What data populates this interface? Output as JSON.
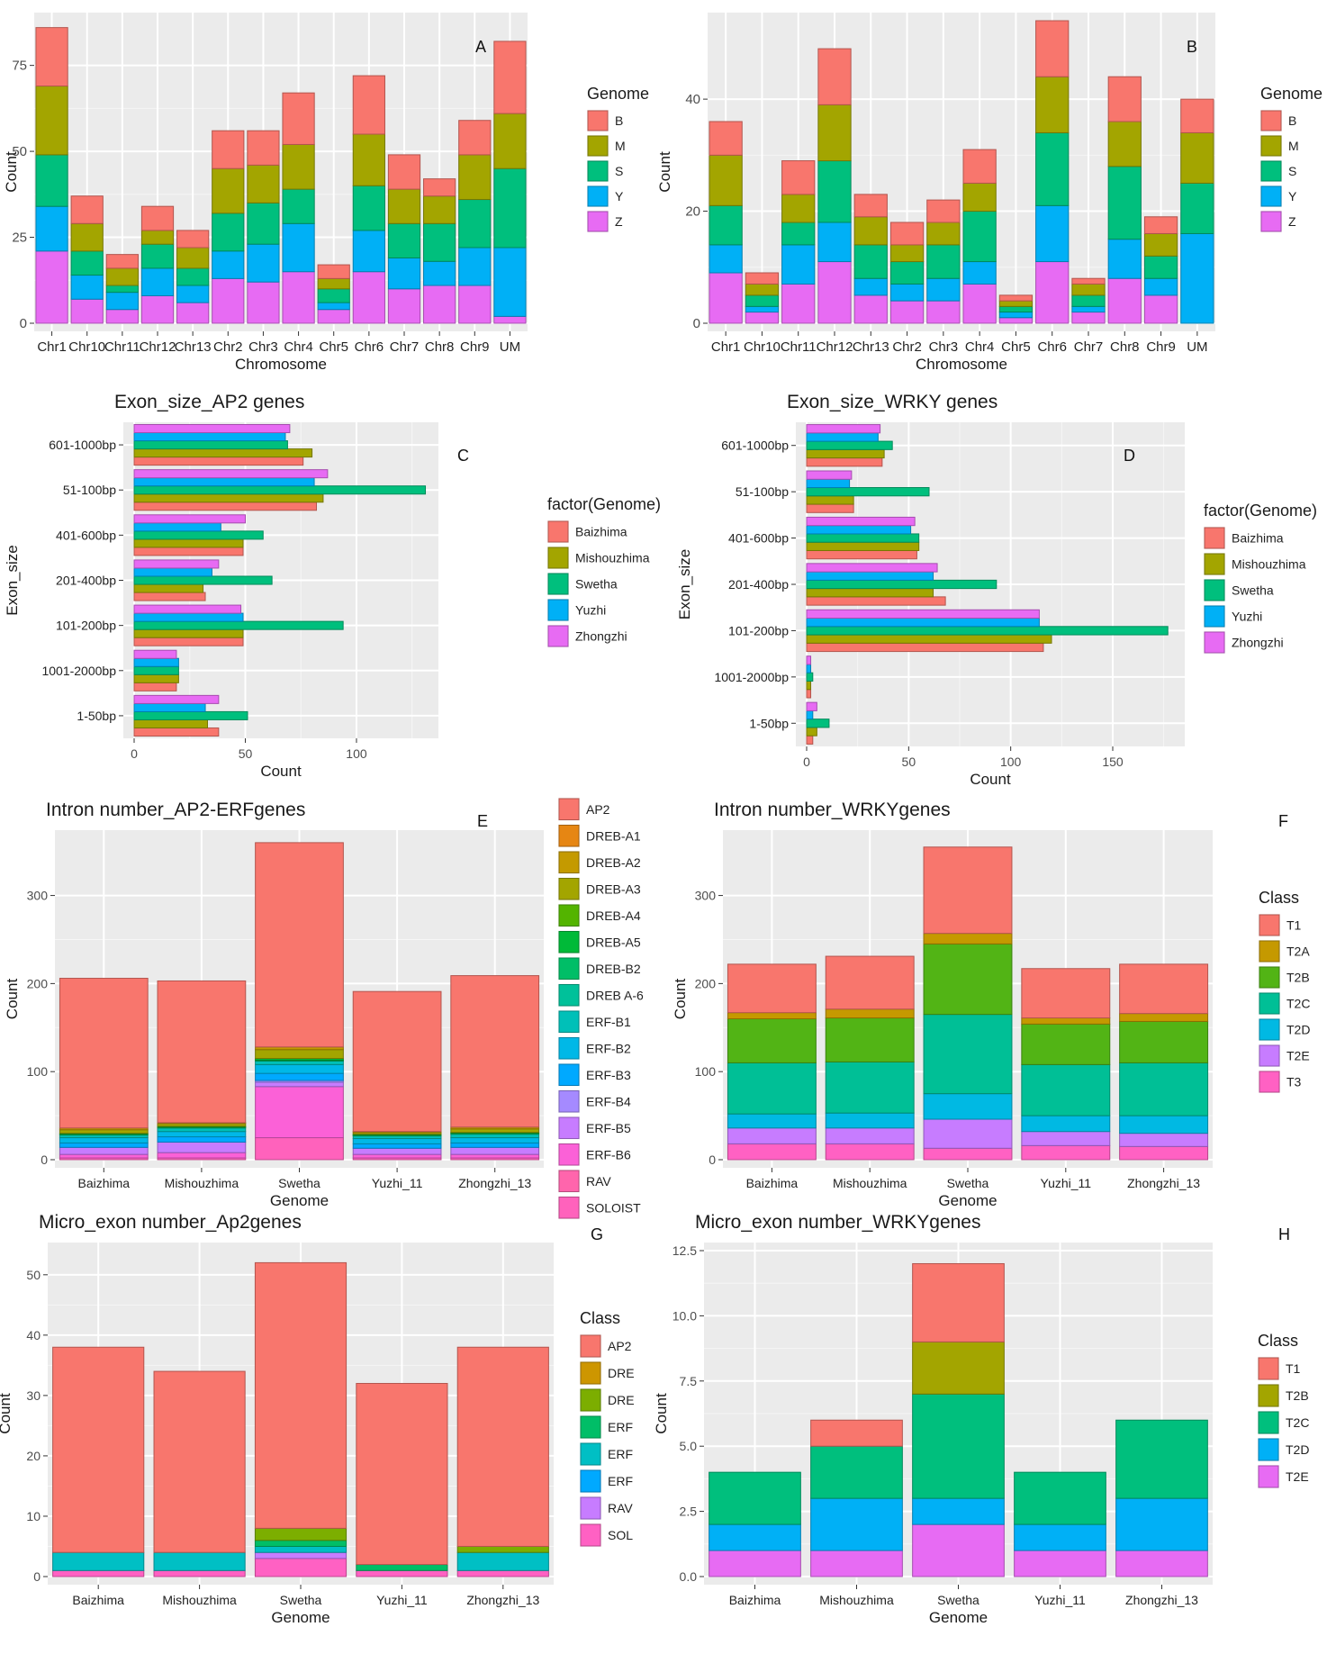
{
  "chart_data": [
    {
      "id": "A",
      "panel_label": "A",
      "type": "bar",
      "orientation": "vertical",
      "stacked": true,
      "title": "",
      "xlabel": "Chromosome",
      "ylabel": "Count",
      "ylim": [
        0,
        88
      ],
      "yticks": [
        0,
        25,
        50,
        75
      ],
      "categories": [
        "Chr1",
        "Chr10",
        "Chr11",
        "Chr12",
        "Chr13",
        "Chr2",
        "Chr3",
        "Chr4",
        "Chr5",
        "Chr6",
        "Chr7",
        "Chr8",
        "Chr9",
        "UM"
      ],
      "legend_title": "Genome",
      "legend_position": "right",
      "series": [
        {
          "name": "Z",
          "color": "#E76BF3",
          "values": [
            21,
            7,
            4,
            8,
            6,
            13,
            12,
            15,
            4,
            15,
            10,
            11,
            11,
            2
          ]
        },
        {
          "name": "Y",
          "color": "#00B0F6",
          "values": [
            13,
            7,
            5,
            8,
            5,
            8,
            11,
            14,
            2,
            12,
            9,
            7,
            11,
            20
          ]
        },
        {
          "name": "S",
          "color": "#00BF7D",
          "values": [
            15,
            7,
            2,
            7,
            5,
            11,
            12,
            10,
            4,
            13,
            10,
            11,
            14,
            23
          ]
        },
        {
          "name": "M",
          "color": "#A3A500",
          "values": [
            20,
            8,
            5,
            4,
            6,
            13,
            11,
            13,
            3,
            15,
            10,
            8,
            13,
            16
          ]
        },
        {
          "name": "B",
          "color": "#F8766D",
          "values": [
            17,
            8,
            4,
            7,
            5,
            11,
            10,
            15,
            4,
            17,
            10,
            5,
            10,
            21
          ]
        }
      ]
    },
    {
      "id": "B",
      "panel_label": "B",
      "type": "bar",
      "orientation": "vertical",
      "stacked": true,
      "title": "",
      "xlabel": "Chromosome",
      "ylabel": "Count",
      "ylim": [
        0,
        54
      ],
      "yticks": [
        0,
        20,
        40
      ],
      "categories": [
        "Chr1",
        "Chr10",
        "Chr11",
        "Chr12",
        "Chr13",
        "Chr2",
        "Chr3",
        "Chr4",
        "Chr5",
        "Chr6",
        "Chr7",
        "Chr8",
        "Chr9",
        "UM"
      ],
      "legend_title": "Genome",
      "legend_position": "right",
      "series": [
        {
          "name": "Z",
          "color": "#E76BF3",
          "values": [
            9,
            2,
            7,
            11,
            5,
            4,
            4,
            7,
            1,
            11,
            2,
            8,
            5,
            0
          ]
        },
        {
          "name": "Y",
          "color": "#00B0F6",
          "values": [
            5,
            1,
            7,
            7,
            3,
            3,
            4,
            4,
            1,
            10,
            1,
            7,
            3,
            16
          ]
        },
        {
          "name": "S",
          "color": "#00BF7D",
          "values": [
            7,
            2,
            4,
            11,
            6,
            4,
            6,
            9,
            1,
            13,
            2,
            13,
            4,
            9
          ]
        },
        {
          "name": "M",
          "color": "#A3A500",
          "values": [
            9,
            2,
            5,
            10,
            5,
            3,
            4,
            5,
            1,
            10,
            2,
            8,
            4,
            9
          ]
        },
        {
          "name": "B",
          "color": "#F8766D",
          "values": [
            6,
            2,
            6,
            10,
            4,
            4,
            4,
            6,
            1,
            10,
            1,
            8,
            3,
            6
          ]
        }
      ]
    },
    {
      "id": "C",
      "panel_label": "C",
      "type": "bar",
      "orientation": "horizontal",
      "stacked": false,
      "title": "Exon_size_AP2 genes",
      "xlabel": "Count",
      "ylabel": "Exon_size",
      "xlim": [
        0,
        132
      ],
      "xticks": [
        0,
        50,
        100
      ],
      "categories": [
        "601-1000bp",
        "51-100bp",
        "401-600bp",
        "201-400bp",
        "101-200bp",
        "1001-2000bp",
        "1-50bp"
      ],
      "legend_title": "factor(Genome)",
      "legend_position": "right",
      "series": [
        {
          "name": "Baizhima",
          "color": "#F8766D",
          "values": [
            76,
            82,
            49,
            32,
            49,
            19,
            38
          ]
        },
        {
          "name": "Mishouzhima",
          "color": "#A3A500",
          "values": [
            80,
            85,
            49,
            31,
            49,
            20,
            33
          ]
        },
        {
          "name": "Swetha",
          "color": "#00BF7D",
          "values": [
            69,
            131,
            58,
            62,
            94,
            20,
            51
          ]
        },
        {
          "name": "Yuzhi",
          "color": "#00B0F6",
          "values": [
            68,
            81,
            39,
            35,
            49,
            20,
            32
          ]
        },
        {
          "name": "Zhongzhi",
          "color": "#E76BF3",
          "values": [
            70,
            87,
            50,
            38,
            48,
            19,
            38
          ]
        }
      ]
    },
    {
      "id": "D",
      "panel_label": "D",
      "type": "bar",
      "orientation": "horizontal",
      "stacked": false,
      "title": "Exon_size_WRKY genes",
      "xlabel": "Count",
      "ylabel": "Exon_size",
      "xlim": [
        0,
        180
      ],
      "xticks": [
        0,
        50,
        100,
        150
      ],
      "categories": [
        "601-1000bp",
        "51-100bp",
        "401-600bp",
        "201-400bp",
        "101-200bp",
        "1001-2000bp",
        "1-50bp"
      ],
      "legend_title": "factor(Genome)",
      "legend_position": "right",
      "series": [
        {
          "name": "Baizhima",
          "color": "#F8766D",
          "values": [
            37,
            23,
            54,
            68,
            116,
            2,
            3
          ]
        },
        {
          "name": "Mishouzhima",
          "color": "#A3A500",
          "values": [
            38,
            23,
            55,
            62,
            120,
            2,
            5
          ]
        },
        {
          "name": "Swetha",
          "color": "#00BF7D",
          "values": [
            42,
            60,
            55,
            93,
            177,
            3,
            11
          ]
        },
        {
          "name": "Yuzhi",
          "color": "#00B0F6",
          "values": [
            35,
            21,
            51,
            62,
            114,
            2,
            3
          ]
        },
        {
          "name": "Zhongzhi",
          "color": "#E76BF3",
          "values": [
            36,
            22,
            53,
            64,
            114,
            2,
            5
          ]
        }
      ]
    },
    {
      "id": "E",
      "panel_label": "E",
      "type": "bar",
      "orientation": "vertical",
      "stacked": true,
      "title": "Intron number_AP2-ERFgenes",
      "xlabel": "Genome",
      "ylabel": "Count",
      "ylim": [
        0,
        365
      ],
      "yticks": [
        0,
        100,
        200,
        300
      ],
      "categories": [
        "Baizhima",
        "Mishouzhima",
        "Swetha",
        "Yuzhi_11",
        "Zhongzhi_13"
      ],
      "legend_title": "",
      "legend_position": "right",
      "series": [
        {
          "name": "SOLOIST",
          "color": "#FF62BC",
          "values": [
            2,
            2,
            25,
            2,
            2
          ]
        },
        {
          "name": "RAV",
          "color": "#FF65AC",
          "values": [
            0,
            0,
            0,
            0,
            0
          ]
        },
        {
          "name": "ERF-B6",
          "color": "#FB61D7",
          "values": [
            4,
            6,
            58,
            4,
            4
          ]
        },
        {
          "name": "ERF-B5",
          "color": "#C77CFF",
          "values": [
            8,
            12,
            5,
            7,
            8
          ]
        },
        {
          "name": "ERF-B4",
          "color": "#A58AFF",
          "values": [
            0,
            0,
            2,
            0,
            0
          ]
        },
        {
          "name": "ERF-B3",
          "color": "#00A9FF",
          "values": [
            5,
            6,
            8,
            5,
            5
          ]
        },
        {
          "name": "ERF-B2",
          "color": "#00B8E7",
          "values": [
            6,
            6,
            10,
            6,
            6
          ]
        },
        {
          "name": "ERF-B1",
          "color": "#00C0B8",
          "values": [
            3,
            4,
            4,
            3,
            4
          ]
        },
        {
          "name": "DREB A-6",
          "color": "#00C19A",
          "values": [
            0,
            0,
            0,
            0,
            0
          ]
        },
        {
          "name": "DREB-B2",
          "color": "#00BE67",
          "values": [
            1,
            1,
            1,
            1,
            1
          ]
        },
        {
          "name": "DREB-A5",
          "color": "#00BA38",
          "values": [
            1,
            1,
            2,
            1,
            1
          ]
        },
        {
          "name": "DREB-A4",
          "color": "#53B400",
          "values": [
            0,
            0,
            0,
            0,
            0
          ]
        },
        {
          "name": "DREB-A3",
          "color": "#A3A500",
          "values": [
            4,
            3,
            10,
            2,
            4
          ]
        },
        {
          "name": "DREB-A2",
          "color": "#C49A00",
          "values": [
            2,
            1,
            3,
            1,
            2
          ]
        },
        {
          "name": "DREB-A1",
          "color": "#E68613",
          "values": [
            0,
            0,
            0,
            0,
            0
          ]
        },
        {
          "name": "AP2",
          "color": "#F8766D",
          "values": [
            170,
            161,
            232,
            159,
            172
          ]
        }
      ]
    },
    {
      "id": "F",
      "panel_label": "F",
      "type": "bar",
      "orientation": "vertical",
      "stacked": true,
      "title": "Intron number_WRKYgenes",
      "xlabel": "Genome",
      "ylabel": "Count",
      "ylim": [
        0,
        365
      ],
      "yticks": [
        0,
        100,
        200,
        300
      ],
      "categories": [
        "Baizhima",
        "Mishouzhima",
        "Swetha",
        "Yuzhi_11",
        "Zhongzhi_13"
      ],
      "legend_title": "Class",
      "legend_position": "right",
      "series": [
        {
          "name": "T3",
          "color": "#FF61C3",
          "values": [
            18,
            18,
            13,
            16,
            15
          ]
        },
        {
          "name": "T2E",
          "color": "#C77CFF",
          "values": [
            18,
            18,
            33,
            16,
            15
          ]
        },
        {
          "name": "T2D",
          "color": "#00B9E3",
          "values": [
            16,
            17,
            29,
            18,
            20
          ]
        },
        {
          "name": "T2C",
          "color": "#00BF96",
          "values": [
            58,
            58,
            90,
            58,
            60
          ]
        },
        {
          "name": "T2B",
          "color": "#52B415",
          "values": [
            50,
            50,
            80,
            46,
            47
          ]
        },
        {
          "name": "T2A",
          "color": "#C59900",
          "values": [
            7,
            10,
            12,
            7,
            9
          ]
        },
        {
          "name": "T1",
          "color": "#F8766D",
          "values": [
            55,
            60,
            98,
            56,
            56
          ]
        }
      ]
    },
    {
      "id": "G",
      "panel_label": "G",
      "type": "bar",
      "orientation": "vertical",
      "stacked": true,
      "title": "Micro_exon number_Ap2genes",
      "xlabel": "Genome",
      "ylabel": "Count",
      "ylim": [
        0,
        54
      ],
      "yticks": [
        0,
        10,
        20,
        30,
        40,
        50
      ],
      "categories": [
        "Baizhima",
        "Mishouzhima",
        "Swetha",
        "Yuzhi_11",
        "Zhongzhi_13"
      ],
      "legend_title": "Class",
      "legend_position": "right",
      "series": [
        {
          "name": "SOL",
          "color": "#FF61C3",
          "values": [
            1,
            1,
            3,
            1,
            1
          ]
        },
        {
          "name": "RAV",
          "color": "#C77CFF",
          "values": [
            0,
            0,
            1,
            0,
            0
          ]
        },
        {
          "name": "ERF",
          "color": "#00A9FF",
          "values": [
            0,
            0,
            0,
            0,
            0
          ]
        },
        {
          "name": "ERF",
          "color": "#00BFC4",
          "values": [
            3,
            3,
            1,
            0,
            3
          ]
        },
        {
          "name": "ERF",
          "color": "#00BE67",
          "values": [
            0,
            0,
            1,
            1,
            0
          ]
        },
        {
          "name": "DRE",
          "color": "#7CAE00",
          "values": [
            0,
            0,
            2,
            0,
            1
          ]
        },
        {
          "name": "DRE",
          "color": "#CD9600",
          "values": [
            0,
            0,
            0,
            0,
            0
          ]
        },
        {
          "name": "AP2",
          "color": "#F8766D",
          "values": [
            34,
            30,
            44,
            30,
            33
          ]
        }
      ]
    },
    {
      "id": "H",
      "panel_label": "H",
      "type": "bar",
      "orientation": "vertical",
      "stacked": true,
      "title": "Micro_exon number_WRKYgenes",
      "xlabel": "Genome",
      "ylabel": "Count",
      "ylim": [
        0,
        12.5
      ],
      "yticks": [
        "0.0",
        "2.5",
        "5.0",
        "7.5",
        "10.0",
        "12.5"
      ],
      "categories": [
        "Baizhima",
        "Mishouzhima",
        "Swetha",
        "Yuzhi_11",
        "Zhongzhi_13"
      ],
      "legend_title": "Class",
      "legend_position": "right",
      "series": [
        {
          "name": "T2E",
          "color": "#E76BF3",
          "values": [
            1,
            1,
            2,
            1,
            1
          ]
        },
        {
          "name": "T2D",
          "color": "#00B0F6",
          "values": [
            1,
            2,
            1,
            1,
            2
          ]
        },
        {
          "name": "T2C",
          "color": "#00BF7D",
          "values": [
            2,
            2,
            4,
            2,
            3
          ]
        },
        {
          "name": "T2B",
          "color": "#A3A500",
          "values": [
            0,
            0,
            2,
            0,
            0
          ]
        },
        {
          "name": "T1",
          "color": "#F8766D",
          "values": [
            0,
            1,
            3,
            0,
            0
          ]
        }
      ]
    }
  ]
}
